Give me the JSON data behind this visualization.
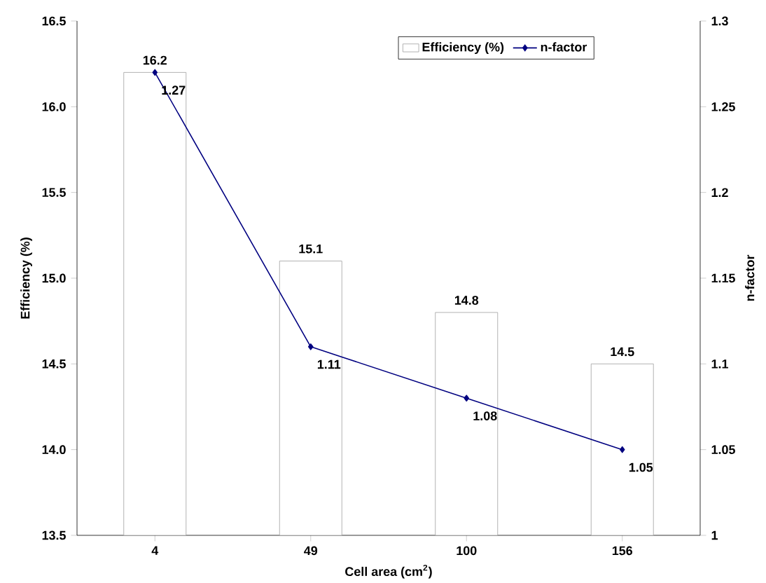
{
  "chart_data": {
    "type": "bar",
    "xlabel": "Cell area (cm$^{2}$)",
    "ylabel": "Efficiency (%)",
    "y2label": "n-factor",
    "categories": [
      "4",
      "49",
      "100",
      "156"
    ],
    "series": [
      {
        "name": "Efficiency (%)",
        "color": "#a0a0a0",
        "values": [
          16.2,
          15.1,
          14.8,
          14.5
        ]
      },
      {
        "name": "n-factor",
        "type": "line",
        "axis": "y2",
        "color": "#000080",
        "values": [
          1.27,
          1.11,
          1.08,
          1.05
        ]
      }
    ],
    "ylim": [
      13.5,
      16.5
    ],
    "yticks": [
      13.5,
      {
        "value": 14,
        "label": "14.0"
      },
      14.5,
      {
        "value": 15,
        "label": "15.0"
      },
      15.5,
      {
        "value": 16,
        "label": "16.0"
      },
      16.5
    ],
    "y2lim": [
      1,
      1.3
    ],
    "y2ticks": [
      1,
      1.05,
      1.1,
      1.15,
      1.2,
      1.25,
      1.3
    ],
    "marker": "diamond",
    "legend": "top right",
    "data_labels": true
  }
}
